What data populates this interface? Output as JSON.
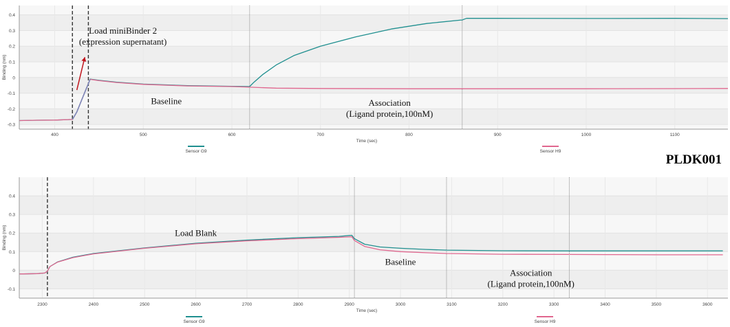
{
  "sample_label": "PLDK001",
  "colors": {
    "sensor_g9": "#1f8f8f",
    "sensor_h9": "#e0668e",
    "sensor_g9_load": "#7e86b8",
    "arrow": "#c0141c",
    "plot_bg_a": "#f7f7f7",
    "plot_bg_b": "#eeeeee"
  },
  "chart_data": [
    {
      "type": "line",
      "xlabel": "Time (sec)",
      "ylabel": "Binding (nm)",
      "xlim": [
        360,
        1160
      ],
      "ylim": [
        -0.33,
        0.46
      ],
      "xticks": [
        400,
        500,
        600,
        700,
        800,
        900,
        1000,
        1100
      ],
      "yticks": [
        -0.3,
        -0.2,
        -0.1,
        0,
        0.1,
        0.2,
        0.3,
        0.4
      ],
      "ytick_labels": [
        "-0.3",
        "-0.2",
        "-0.1",
        "0",
        "0.1",
        "0.2",
        "0.3",
        "0.4"
      ],
      "grid": true,
      "legend_position": "bottom",
      "step_lines": [
        {
          "x": 420,
          "style": "dashed"
        },
        {
          "x": 438,
          "style": "dashed"
        },
        {
          "x": 620,
          "style": "dotted"
        },
        {
          "x": 860,
          "style": "dotted"
        }
      ],
      "annotations": [
        {
          "lines": [
            "Load miniBinder 2",
            "(expression supernatant)"
          ],
          "x": 477,
          "y": 0.28
        },
        {
          "lines": [
            "Baseline"
          ],
          "x": 526,
          "y": -0.17
        },
        {
          "lines": [
            "Association",
            "(Ligand protein,100nM)"
          ],
          "x": 778,
          "y": -0.18
        }
      ],
      "arrow": {
        "from": [
          425,
          -0.08
        ],
        "to": [
          434,
          0.13
        ]
      },
      "series": [
        {
          "name": "Sensor G9",
          "color_key": "sensor_g9",
          "points": [
            [
              360,
              -0.275
            ],
            [
              380,
              -0.273
            ],
            [
              400,
              -0.272
            ],
            [
              420,
              -0.268
            ],
            [
              425,
              -0.22
            ],
            [
              430,
              -0.15
            ],
            [
              435,
              -0.08
            ],
            [
              438,
              -0.04
            ],
            [
              440,
              -0.01
            ],
            [
              450,
              -0.018
            ],
            [
              470,
              -0.03
            ],
            [
              500,
              -0.042
            ],
            [
              550,
              -0.052
            ],
            [
              600,
              -0.056
            ],
            [
              620,
              -0.058
            ],
            [
              625,
              -0.03
            ],
            [
              635,
              0.02
            ],
            [
              650,
              0.08
            ],
            [
              670,
              0.14
            ],
            [
              700,
              0.2
            ],
            [
              740,
              0.26
            ],
            [
              780,
              0.31
            ],
            [
              820,
              0.345
            ],
            [
              860,
              0.368
            ],
            [
              865,
              0.378
            ],
            [
              900,
              0.378
            ],
            [
              1000,
              0.377
            ],
            [
              1100,
              0.378
            ],
            [
              1160,
              0.376
            ]
          ]
        },
        {
          "name": "Sensor H9",
          "color_key": "sensor_h9",
          "points": [
            [
              360,
              -0.275
            ],
            [
              380,
              -0.273
            ],
            [
              400,
              -0.272
            ],
            [
              420,
              -0.268
            ],
            [
              425,
              -0.22
            ],
            [
              430,
              -0.15
            ],
            [
              435,
              -0.08
            ],
            [
              438,
              -0.04
            ],
            [
              440,
              -0.012
            ],
            [
              450,
              -0.02
            ],
            [
              470,
              -0.032
            ],
            [
              500,
              -0.044
            ],
            [
              550,
              -0.054
            ],
            [
              600,
              -0.058
            ],
            [
              620,
              -0.062
            ],
            [
              650,
              -0.068
            ],
            [
              700,
              -0.07
            ],
            [
              800,
              -0.072
            ],
            [
              900,
              -0.072
            ],
            [
              1000,
              -0.072
            ],
            [
              1100,
              -0.071
            ],
            [
              1160,
              -0.07
            ]
          ]
        }
      ]
    },
    {
      "type": "line",
      "xlabel": "Time (sec)",
      "ylabel": "Binding (nm)",
      "xlim": [
        2255,
        3640
      ],
      "ylim": [
        -0.15,
        0.5
      ],
      "xticks": [
        2300,
        2400,
        2500,
        2600,
        2700,
        2800,
        2900,
        3000,
        3100,
        3200,
        3300,
        3400,
        3500,
        3600
      ],
      "yticks": [
        -0.1,
        0,
        0.1,
        0.2,
        0.3,
        0.4
      ],
      "ytick_labels": [
        "-0.1",
        "0",
        "0.1",
        "0.2",
        "0.3",
        "0.4"
      ],
      "grid": true,
      "legend_position": "bottom",
      "step_lines": [
        {
          "x": 2310,
          "style": "dashed"
        },
        {
          "x": 2910,
          "style": "dotted"
        },
        {
          "x": 3090,
          "style": "dotted"
        },
        {
          "x": 3330,
          "style": "dotted"
        }
      ],
      "annotations": [
        {
          "lines": [
            "Load Blank"
          ],
          "x": 2600,
          "y": 0.185
        },
        {
          "lines": [
            "Baseline"
          ],
          "x": 3000,
          "y": 0.03
        },
        {
          "lines": [
            "Association",
            "(Ligand protein,100nM)"
          ],
          "x": 3255,
          "y": -0.03
        }
      ],
      "series": [
        {
          "name": "Sensor G9",
          "color_key": "sensor_g9",
          "points": [
            [
              2255,
              -0.02
            ],
            [
              2290,
              -0.018
            ],
            [
              2305,
              -0.015
            ],
            [
              2310,
              -0.005
            ],
            [
              2315,
              0.02
            ],
            [
              2330,
              0.045
            ],
            [
              2360,
              0.07
            ],
            [
              2400,
              0.09
            ],
            [
              2500,
              0.12
            ],
            [
              2600,
              0.145
            ],
            [
              2700,
              0.162
            ],
            [
              2800,
              0.175
            ],
            [
              2880,
              0.182
            ],
            [
              2905,
              0.188
            ],
            [
              2910,
              0.17
            ],
            [
              2930,
              0.14
            ],
            [
              2960,
              0.125
            ],
            [
              3000,
              0.118
            ],
            [
              3050,
              0.112
            ],
            [
              3090,
              0.108
            ],
            [
              3200,
              0.105
            ],
            [
              3330,
              0.104
            ],
            [
              3400,
              0.104
            ],
            [
              3500,
              0.104
            ],
            [
              3630,
              0.104
            ]
          ]
        },
        {
          "name": "Sensor H9",
          "color_key": "sensor_h9",
          "points": [
            [
              2255,
              -0.02
            ],
            [
              2290,
              -0.018
            ],
            [
              2305,
              -0.015
            ],
            [
              2310,
              -0.005
            ],
            [
              2315,
              0.02
            ],
            [
              2330,
              0.044
            ],
            [
              2360,
              0.068
            ],
            [
              2400,
              0.088
            ],
            [
              2500,
              0.118
            ],
            [
              2600,
              0.142
            ],
            [
              2700,
              0.158
            ],
            [
              2800,
              0.17
            ],
            [
              2880,
              0.177
            ],
            [
              2905,
              0.18
            ],
            [
              2910,
              0.16
            ],
            [
              2930,
              0.128
            ],
            [
              2960,
              0.11
            ],
            [
              3000,
              0.1
            ],
            [
              3050,
              0.094
            ],
            [
              3090,
              0.09
            ],
            [
              3200,
              0.086
            ],
            [
              3330,
              0.085
            ],
            [
              3400,
              0.084
            ],
            [
              3500,
              0.083
            ],
            [
              3630,
              0.083
            ]
          ]
        }
      ]
    }
  ]
}
